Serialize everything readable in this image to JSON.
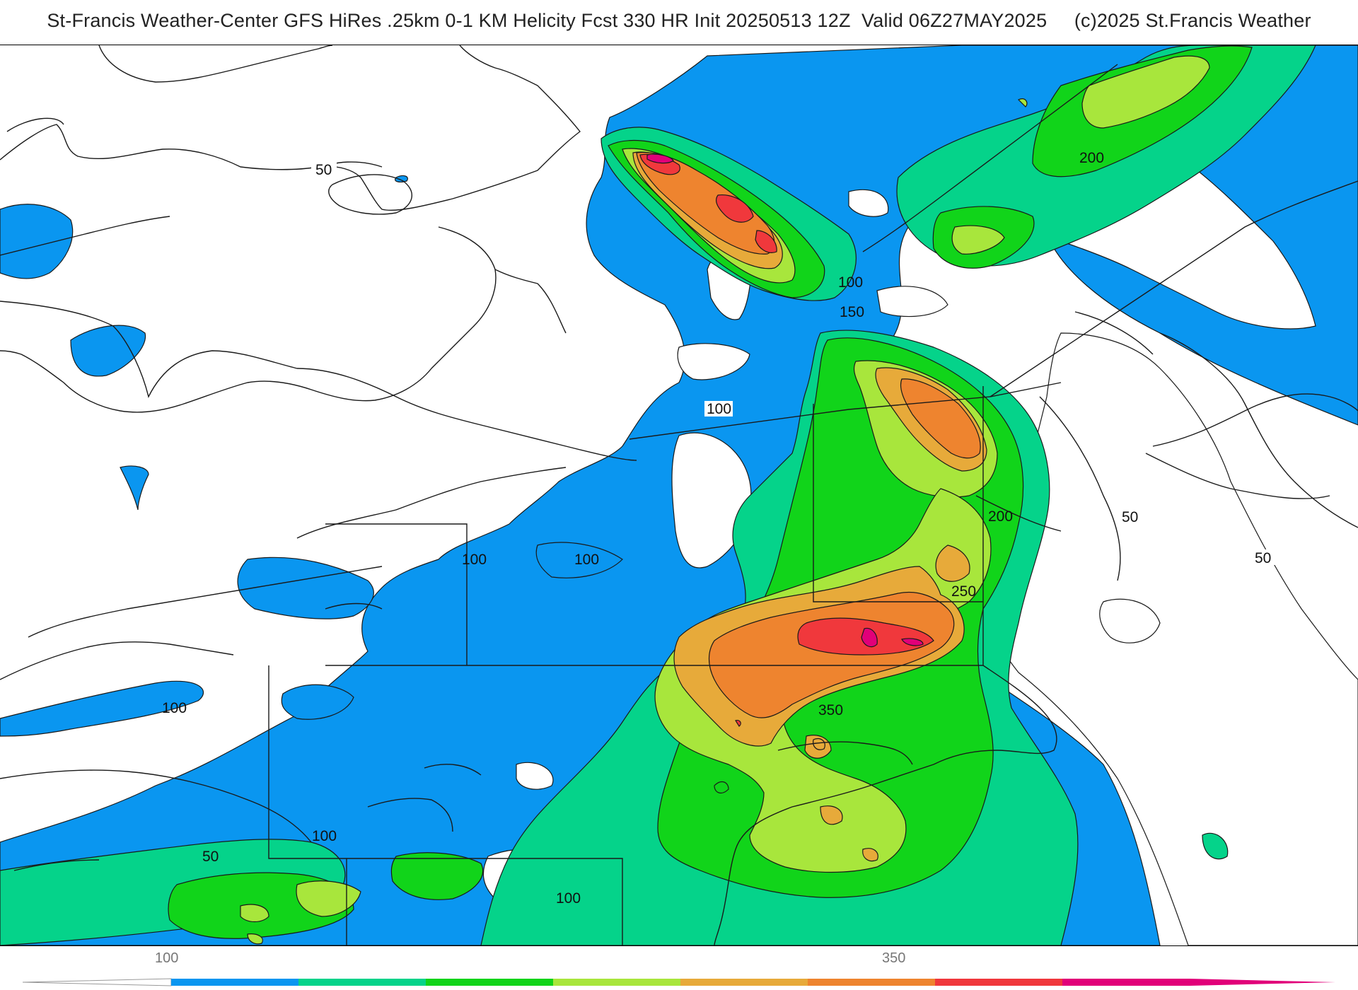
{
  "title": "St-Francis Weather-Center GFS HiRes .25km 0-1 KM Helicity Fcst 330 HR Init 20250513 12Z  Valid 06Z27MAY2025     (c)2025 St.Francis Weather",
  "colors": {
    "band_100": "#0a96f0",
    "band_150": "#05d38a",
    "band_200": "#11d41a",
    "band_250": "#a8e63c",
    "band_300": "#e7aa3a",
    "band_350": "#ee842f",
    "band_400": "#f0383c",
    "band_450": "#e10079"
  },
  "contour_labels": {
    "c1": "50",
    "c2": "100",
    "c3": "150",
    "c4": "100",
    "c5": "200",
    "c6": "200",
    "c7": "250",
    "c8": "350",
    "c9": "100",
    "c10": "100",
    "c11": "100",
    "c12": "50",
    "c13": "100",
    "c14": "100",
    "c15": "50",
    "c16": "50"
  },
  "colorbar": {
    "label_left": "100",
    "label_right": "350",
    "bands": [
      "#0a96f0",
      "#05d38a",
      "#11d41a",
      "#a8e63c",
      "#e7aa3a",
      "#ee842f",
      "#f0383c",
      "#e10079"
    ]
  }
}
